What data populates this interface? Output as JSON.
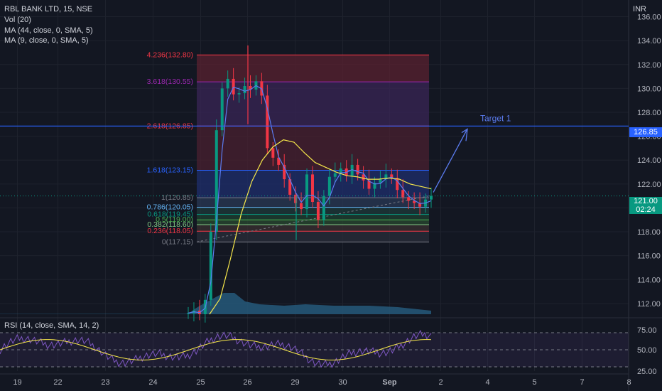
{
  "header": {
    "title": "RBL BANK LTD, 15, NSE",
    "vol": "Vol (20)",
    "ma44": "MA (44, close, 0, SMA, 5)",
    "ma9": "MA (9, close, 0, SMA, 5)",
    "unit": "INR"
  },
  "rsi_label": "RSI (14, close, SMA, 14, 2)",
  "price_boxes": {
    "target": "126.85",
    "last_price": "121.00",
    "countdown": "02:24"
  },
  "annotation": {
    "target_label": "Target 1"
  },
  "colors": {
    "background": "#131722",
    "up_candle": "#089981",
    "down_candle": "#f23645",
    "ma44": "#f7e84a",
    "ma9": "#5b7cf0",
    "target_line": "#2962ff",
    "rsi": "#7e57c2"
  },
  "chart_data": [
    {
      "type": "candlestick",
      "symbol": "RBL BANK LTD",
      "interval": "15",
      "exchange": "NSE",
      "x_ticks": [
        "19",
        "22",
        "23",
        "24",
        "25",
        "26",
        "29",
        "30",
        "Sep",
        "2",
        "4",
        "5",
        "7",
        "8"
      ],
      "x_tick_positions": [
        24.5,
        81.5,
        148.5,
        215.5,
        282.5,
        348.5,
        415.5,
        482.5,
        548.5,
        620.5,
        686.5,
        752.5,
        819.5,
        885.5
      ],
      "y_ticks": [
        112,
        114,
        116,
        118,
        120,
        122,
        124,
        126,
        128,
        130,
        132,
        134,
        136
      ],
      "ylim": [
        111.1,
        137.4
      ],
      "fib_levels": [
        {
          "label": "4.236(132.80)",
          "value": 132.8,
          "color": "#f23645"
        },
        {
          "label": "3.618(130.55)",
          "value": 130.55,
          "color": "#9c27b0"
        },
        {
          "label": "2.618(126.85)",
          "value": 126.85,
          "color": "#f23645"
        },
        {
          "label": "1.618(123.15)",
          "value": 123.15,
          "color": "#2962ff"
        },
        {
          "label": "1(120.85)",
          "value": 120.85,
          "color": "#787b86"
        },
        {
          "label": "0.786(120.05)",
          "value": 120.05,
          "color": "#64b5f6"
        },
        {
          "label": "0.618(119.45)",
          "value": 119.45,
          "color": "#089981"
        },
        {
          "label": "0.5(119.00)",
          "value": 119.0,
          "color": "#4caf50"
        },
        {
          "label": "0.382(118.60)",
          "value": 118.6,
          "color": "#81c784"
        },
        {
          "label": "0.236(118.05)",
          "value": 118.05,
          "color": "#f23645"
        },
        {
          "label": "0(117.15)",
          "value": 117.15,
          "color": "#787b86"
        }
      ],
      "target_level": 126.85,
      "last_price": 121.0,
      "candles_close": [
        111.2,
        111.4,
        111.1,
        112.3,
        118.0,
        126.5,
        130.0,
        130.8,
        129.5,
        129.6,
        130.2,
        129.9,
        130.6,
        129.4,
        125.0,
        124.2,
        123.6,
        122.4,
        121.1,
        120.4,
        119.9,
        122.8,
        120.5,
        119.0,
        121.0,
        122.6,
        122.9,
        123.3,
        122.7,
        123.6,
        122.8,
        122.3,
        121.6,
        122.1,
        122.4,
        122.8,
        122.5,
        121.5,
        120.9,
        120.6,
        120.4,
        120.1,
        120.7,
        121.0
      ],
      "ma44_values": [
        111.1,
        112.4,
        115.8,
        119.5,
        122.2,
        124.0,
        125.1,
        125.7,
        125.5,
        124.6,
        123.8,
        123.4,
        123.0,
        122.7,
        122.6,
        122.4,
        122.4,
        122.5,
        122.4,
        122.0,
        121.8,
        121.6
      ],
      "rsi": {
        "levels": [
          30,
          50,
          70
        ],
        "y_ticks": [
          25,
          50,
          75
        ],
        "range": [
          20,
          80
        ]
      }
    }
  ]
}
